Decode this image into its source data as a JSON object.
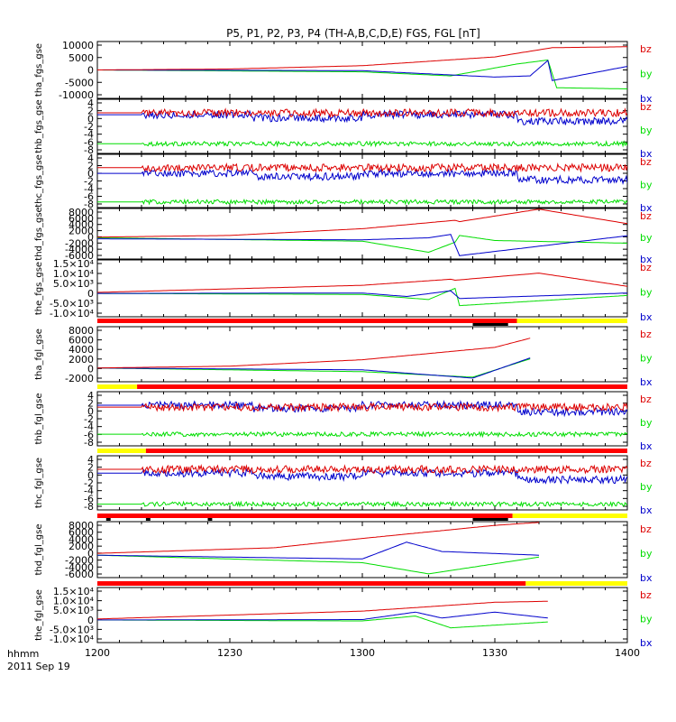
{
  "title": "P5, P1, P2, P3, P4 (TH-A,B,C,D,E) FGS, FGL [nT]",
  "time_axis": {
    "label_line1": "hhmm",
    "label_line2": "2011 Sep 19",
    "ticks": [
      "1200",
      "1230",
      "1300",
      "1330",
      "1400"
    ]
  },
  "colors": {
    "bx": "#0000cc",
    "by": "#00dd00",
    "bz": "#dd0000",
    "quality_red": "#ff0000",
    "quality_yellow": "#ffff00",
    "quality_black": "#000000"
  },
  "chart_data": {
    "type": "line",
    "x_unit": "hhmm UT",
    "x_range": [
      "1200",
      "1400"
    ],
    "panels": [
      {
        "name": "tha_fgs_gse",
        "ylabels": [
          "10000",
          "5000",
          "0",
          "-5000",
          "-10000"
        ],
        "ylim": [
          -12000,
          12000
        ],
        "signal": "smooth-a",
        "data_end": "1400",
        "series": [
          {
            "name": "bz",
            "points": [
              [
                "1200",
                0
              ],
              [
                "1230",
                400
              ],
              [
                "1300",
                1800
              ],
              [
                "1330",
                5500
              ],
              [
                "1343",
                9400
              ],
              [
                "1400",
                9800
              ]
            ]
          },
          {
            "name": "by",
            "points": [
              [
                "1200",
                0
              ],
              [
                "1300",
                -800
              ],
              [
                "1320",
                -2500
              ],
              [
                "1335",
                2500
              ],
              [
                "1342",
                4200
              ],
              [
                "1344",
                -7500
              ],
              [
                "1400",
                -8000
              ]
            ]
          },
          {
            "name": "bx",
            "points": [
              [
                "1200",
                0
              ],
              [
                "1300",
                -300
              ],
              [
                "1330",
                -3000
              ],
              [
                "1338",
                -2500
              ],
              [
                "1342",
                4000
              ],
              [
                "1343",
                -4500
              ],
              [
                "1400",
                1500
              ]
            ]
          }
        ]
      },
      {
        "name": "thb_fgs_gse",
        "ylabels": [
          "4",
          "2",
          "0",
          "-2",
          "-4",
          "-6",
          "-8"
        ],
        "ylim": [
          -9,
          5
        ],
        "signal": "noisy",
        "data_end": "1400",
        "series": [
          {
            "name": "bz",
            "level": 1.5
          },
          {
            "name": "by",
            "level": -6.5
          },
          {
            "name": "bx",
            "level": 1.0
          }
        ]
      },
      {
        "name": "thc_fgs_gse",
        "ylabels": [
          "4",
          "2",
          "0",
          "-2",
          "-4",
          "-6",
          "-8"
        ],
        "ylim": [
          -9,
          5
        ],
        "signal": "noisy",
        "data_end": "1400",
        "series": [
          {
            "name": "bz",
            "level": 1.5
          },
          {
            "name": "by",
            "level": -7.5
          },
          {
            "name": "bx",
            "level": 0.0
          }
        ]
      },
      {
        "name": "thd_fgs_gse",
        "ylabels": [
          "8000",
          "6000",
          "4000",
          "2000",
          "0",
          "-2000",
          "-4000",
          "-6000"
        ],
        "ylim": [
          -6500,
          8500
        ],
        "signal": "smooth-b",
        "data_end": "1400",
        "series": [
          {
            "name": "bz",
            "points": [
              [
                "1200",
                0
              ],
              [
                "1230",
                500
              ],
              [
                "1300",
                2500
              ],
              [
                "1321",
                5000
              ],
              [
                "1322",
                4600
              ],
              [
                "1340",
                8300
              ],
              [
                "1400",
                4000
              ]
            ]
          },
          {
            "name": "by",
            "points": [
              [
                "1200",
                -200
              ],
              [
                "1300",
                -1200
              ],
              [
                "1315",
                -4500
              ],
              [
                "1321",
                -1500
              ],
              [
                "1322",
                500
              ],
              [
                "1330",
                -1000
              ],
              [
                "1400",
                -1800
              ]
            ]
          },
          {
            "name": "bx",
            "points": [
              [
                "1200",
                -500
              ],
              [
                "1300",
                -800
              ],
              [
                "1315",
                -200
              ],
              [
                "1320",
                800
              ],
              [
                "1322",
                -5500
              ],
              [
                "1400",
                400
              ]
            ]
          }
        ]
      },
      {
        "name": "the_fgs_gse",
        "ylabels": [
          "1.5×10⁴",
          "1.0×10⁴",
          "5.0×10³",
          "0",
          "-5.0×10³",
          "-1.0×10⁴"
        ],
        "ylim": [
          -12000,
          16000
        ],
        "signal": "smooth-b",
        "data_end": "1400",
        "series": [
          {
            "name": "bz",
            "points": [
              [
                "1200",
                0
              ],
              [
                "1300",
                3500
              ],
              [
                "1320",
                6500
              ],
              [
                "1321",
                6000
              ],
              [
                "1340",
                9500
              ],
              [
                "1400",
                3000
              ]
            ]
          },
          {
            "name": "by",
            "points": [
              [
                "1200",
                -500
              ],
              [
                "1300",
                -1000
              ],
              [
                "1315",
                -3500
              ],
              [
                "1321",
                2000
              ],
              [
                "1322",
                -6500
              ],
              [
                "1400",
                -1500
              ]
            ]
          },
          {
            "name": "bx",
            "points": [
              [
                "1200",
                -500
              ],
              [
                "1300",
                -300
              ],
              [
                "1310",
                -2000
              ],
              [
                "1320",
                800
              ],
              [
                "1322",
                -3000
              ],
              [
                "1400",
                -300
              ]
            ]
          }
        ]
      },
      {
        "name": "tha_fgl_gse",
        "ylabels": [
          "8000",
          "6000",
          "4000",
          "2000",
          "0",
          "-2000"
        ],
        "ylim": [
          -3000,
          9000
        ],
        "signal": "smooth-a",
        "data_end": "1338",
        "series": [
          {
            "name": "bz",
            "points": [
              [
                "1200",
                0
              ],
              [
                "1230",
                400
              ],
              [
                "1300",
                1800
              ],
              [
                "1330",
                4500
              ],
              [
                "1338",
                6500
              ]
            ]
          },
          {
            "name": "by",
            "points": [
              [
                "1200",
                0
              ],
              [
                "1300",
                -800
              ],
              [
                "1325",
                -2000
              ],
              [
                "1338",
                2000
              ]
            ]
          },
          {
            "name": "bx",
            "points": [
              [
                "1200",
                0
              ],
              [
                "1300",
                -400
              ],
              [
                "1325",
                -2200
              ],
              [
                "1338",
                2200
              ]
            ]
          }
        ]
      },
      {
        "name": "thb_fgl_gse",
        "ylabels": [
          "4",
          "2",
          "0",
          "-2",
          "-4",
          "-6",
          "-8"
        ],
        "ylim": [
          -9,
          5
        ],
        "signal": "noisy",
        "data_end": "1400",
        "series": [
          {
            "name": "bz",
            "level": 1.0
          },
          {
            "name": "by",
            "level": -6.0
          },
          {
            "name": "bx",
            "level": 1.5
          }
        ]
      },
      {
        "name": "thc_fgl_gse",
        "ylabels": [
          "4",
          "2",
          "0",
          "-2",
          "-4",
          "-6",
          "-8"
        ],
        "ylim": [
          -9,
          5
        ],
        "signal": "noisy",
        "data_end": "1400",
        "series": [
          {
            "name": "bz",
            "level": 1.5
          },
          {
            "name": "by",
            "level": -7.5
          },
          {
            "name": "bx",
            "level": 0.5
          }
        ]
      },
      {
        "name": "thd_fgl_gse",
        "ylabels": [
          "8000",
          "6000",
          "4000",
          "2000",
          "0",
          "-2000",
          "-4000",
          "-6000"
        ],
        "ylim": [
          -6500,
          8500
        ],
        "signal": "smooth-b",
        "data_end": "1340",
        "series": [
          {
            "name": "bz",
            "points": [
              [
                "1200",
                0
              ],
              [
                "1240",
                1500
              ],
              [
                "1300",
                4000
              ],
              [
                "1330",
                7500
              ],
              [
                "1340",
                8300
              ]
            ]
          },
          {
            "name": "by",
            "points": [
              [
                "1200",
                -500
              ],
              [
                "1300",
                -2500
              ],
              [
                "1315",
                -5500
              ],
              [
                "1340",
                -1000
              ]
            ]
          },
          {
            "name": "bx",
            "points": [
              [
                "1200",
                -500
              ],
              [
                "1300",
                -1500
              ],
              [
                "1310",
                3000
              ],
              [
                "1318",
                500
              ],
              [
                "1340",
                -500
              ]
            ]
          }
        ]
      },
      {
        "name": "the_fgl_gse",
        "ylabels": [
          "1.5×10⁴",
          "1.0×10⁴",
          "5.0×10³",
          "0",
          "-5.0×10³",
          "-1.0×10⁴"
        ],
        "ylim": [
          -12000,
          16000
        ],
        "signal": "smooth-b",
        "data_end": "1342",
        "series": [
          {
            "name": "bz",
            "points": [
              [
                "1200",
                0
              ],
              [
                "1300",
                4000
              ],
              [
                "1330",
                8500
              ],
              [
                "1342",
                9000
              ]
            ]
          },
          {
            "name": "by",
            "points": [
              [
                "1200",
                -500
              ],
              [
                "1300",
                -1000
              ],
              [
                "1312",
                1500
              ],
              [
                "1320",
                -4500
              ],
              [
                "1342",
                -1500
              ]
            ]
          },
          {
            "name": "bx",
            "points": [
              [
                "1200",
                -500
              ],
              [
                "1300",
                -300
              ],
              [
                "1312",
                3500
              ],
              [
                "1318",
                500
              ],
              [
                "1330",
                3500
              ],
              [
                "1342",
                500
              ]
            ]
          }
        ]
      }
    ],
    "quality_bars": [
      {
        "after_panel": 5,
        "segments": [
          [
            "1200",
            "1335",
            "red"
          ],
          [
            "1335",
            "1400",
            "yellow"
          ]
        ],
        "marks": [
          [
            "1325",
            "1333"
          ]
        ]
      },
      {
        "after_panel": 6,
        "segments": [
          [
            "1200",
            "1209",
            "yellow"
          ],
          [
            "1209",
            "1400",
            "red"
          ]
        ],
        "marks": []
      },
      {
        "after_panel": 7,
        "segments": [
          [
            "1200",
            "1211",
            "yellow"
          ],
          [
            "1211",
            "1400",
            "red"
          ]
        ],
        "marks": []
      },
      {
        "after_panel": 8,
        "segments": [
          [
            "1200",
            "1334",
            "red"
          ],
          [
            "1334",
            "1400",
            "yellow"
          ]
        ],
        "marks": [
          [
            "1202",
            "1203"
          ],
          [
            "1211",
            "1212"
          ],
          [
            "1225",
            "1226"
          ],
          [
            "1325",
            "1333"
          ]
        ]
      },
      {
        "after_panel": 9,
        "segments": [
          [
            "1200",
            "1337",
            "red"
          ],
          [
            "1337",
            "1400",
            "yellow"
          ]
        ],
        "marks": []
      }
    ]
  }
}
